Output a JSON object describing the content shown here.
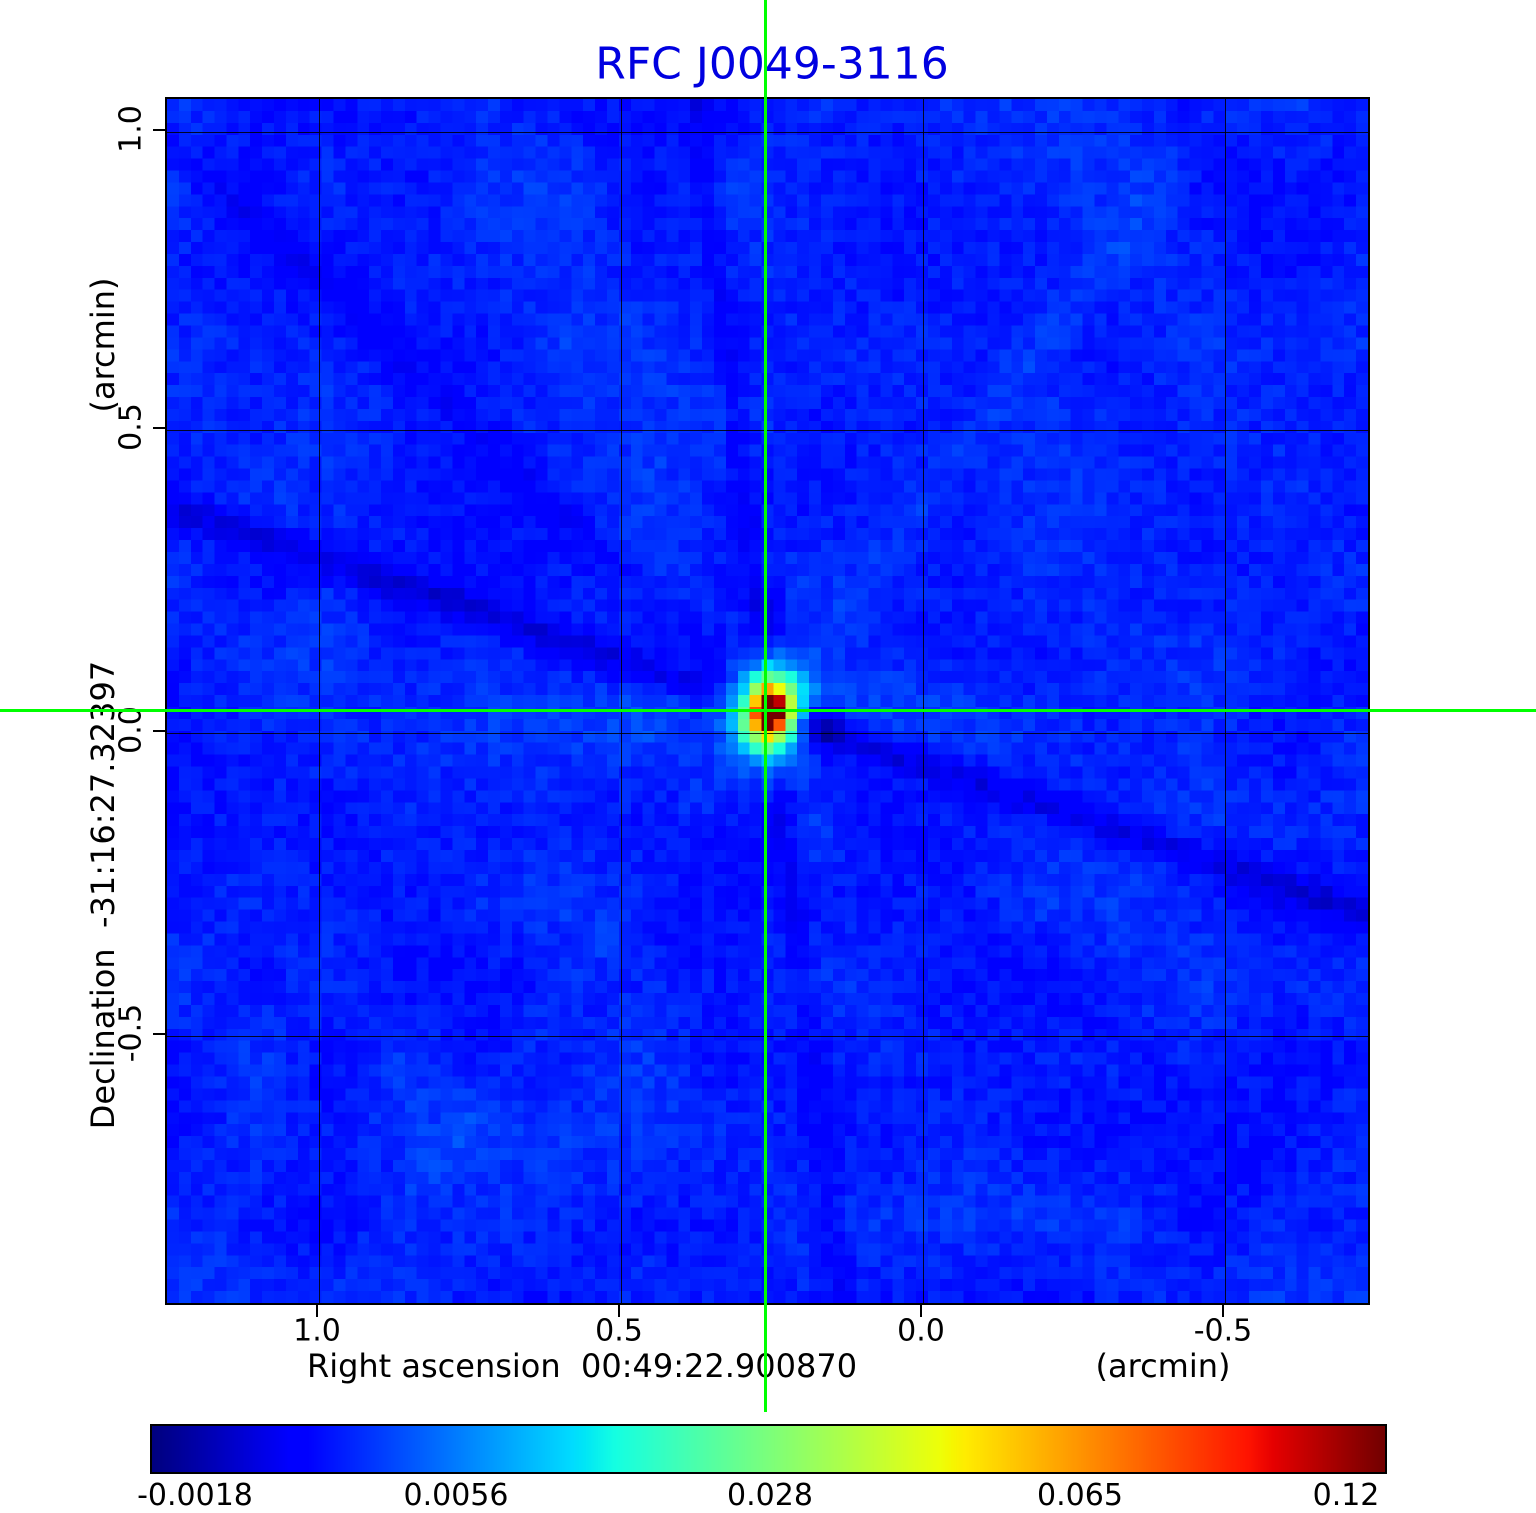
{
  "title": "RFC J0049-3116",
  "axes": {
    "x": {
      "label": "Right ascension  00:49:22.900870",
      "unit": "(arcmin)",
      "ticks": [
        "1.0",
        "0.5",
        "0.0",
        "-0.5"
      ]
    },
    "y": {
      "label": "Declination  -31:16:27.32397",
      "unit": "(arcmin)",
      "ticks": [
        "1.0",
        "0.5",
        "0.0",
        "-0.5"
      ]
    }
  },
  "colorbar": {
    "ticks": [
      "-0.0018",
      "0.0056",
      "0.028",
      "0.065",
      "0.12"
    ]
  },
  "chart_data": {
    "type": "heatmap",
    "title": "RFC J0049-3116",
    "xlabel": "Right ascension 00:49:22.900870 (arcmin)",
    "ylabel": "Declination -31:16:27.32397 (arcmin)",
    "x_range_arcmin": [
      1.25,
      -0.74
    ],
    "y_range_arcmin": [
      -0.94,
      1.05
    ],
    "x_ticks": [
      1.0,
      0.5,
      0.0,
      -0.5
    ],
    "y_ticks": [
      1.0,
      0.5,
      0.0,
      -0.5
    ],
    "grid": true,
    "colormap": "jet",
    "colorbar_tick_values": [
      -0.0018,
      0.0056,
      0.028,
      0.065,
      0.12
    ],
    "value_min": -0.0018,
    "value_max": 0.12,
    "peak_value": 0.12,
    "background_level": 0.0,
    "peak_offset_arcmin": {
      "x": 0.26,
      "y": 0.05
    },
    "crosshair_color": "#00ff00",
    "title_color": "#0000e0",
    "description": "Radio interferometric map: one compact bright source (peak ~0.12) at the green crosshair on a noisy blue background with faint diagonal sidelobe stripes."
  }
}
